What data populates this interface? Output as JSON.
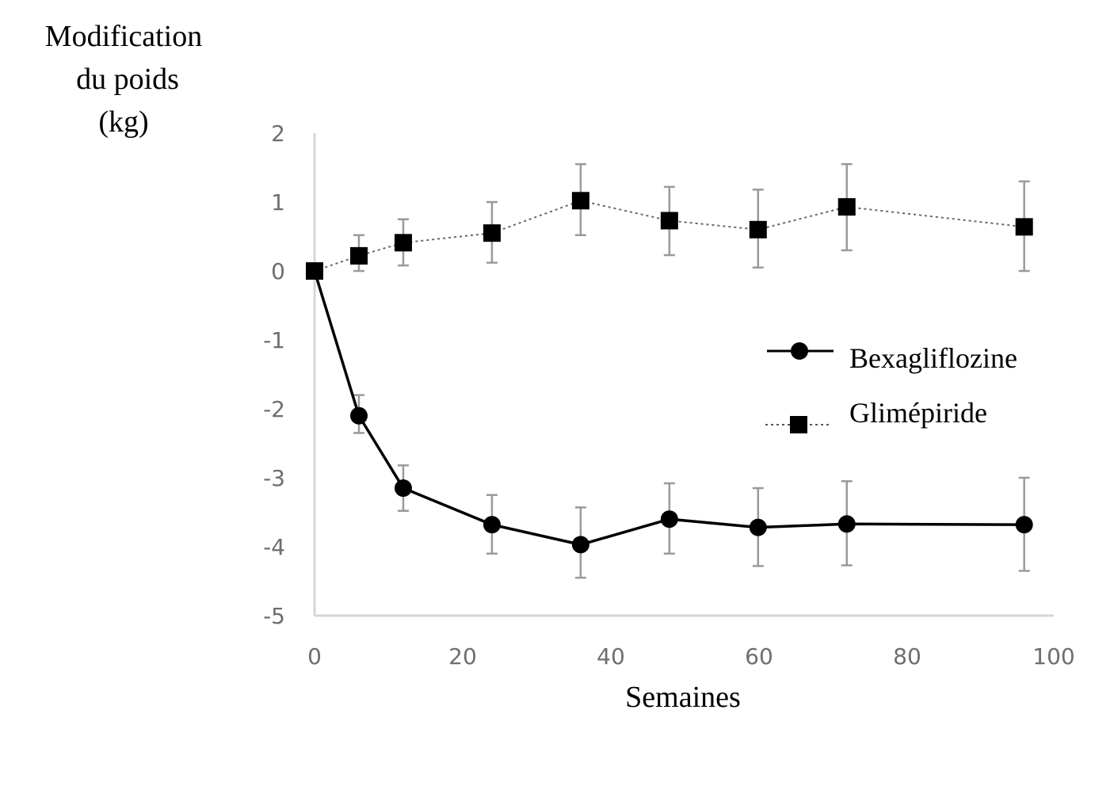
{
  "chart_data": {
    "type": "line",
    "title": "",
    "ylabel_lines": [
      "Modification",
      "du poids",
      "(kg)"
    ],
    "xlabel": "Semaines",
    "xlim": [
      0,
      100
    ],
    "ylim": [
      -5,
      2
    ],
    "xticks": [
      "0",
      "20",
      "40",
      "60",
      "80",
      "100"
    ],
    "yticks": [
      "2",
      "1",
      "0",
      "-1",
      "-2",
      "-3",
      "-4",
      "-5"
    ],
    "grid": false,
    "legend_position": "right-center",
    "series": [
      {
        "name": "Bexagliflozine",
        "marker": "circle",
        "line_style": "solid",
        "color": "#000000",
        "x": [
          0,
          6,
          12,
          24,
          36,
          48,
          60,
          72,
          96
        ],
        "y": [
          0,
          -2.1,
          -3.15,
          -3.68,
          -3.97,
          -3.6,
          -3.72,
          -3.67,
          -3.68
        ],
        "err_low": [
          0,
          -2.35,
          -3.48,
          -4.1,
          -4.45,
          -4.1,
          -4.28,
          -4.27,
          -4.35
        ],
        "err_high": [
          0,
          -1.8,
          -2.82,
          -3.25,
          -3.43,
          -3.08,
          -3.15,
          -3.05,
          -3.0
        ]
      },
      {
        "name": "Glimépiride",
        "marker": "square",
        "line_style": "dotted",
        "color": "#000000",
        "x": [
          0,
          6,
          12,
          24,
          36,
          48,
          60,
          72,
          96
        ],
        "y": [
          0,
          0.22,
          0.41,
          0.55,
          1.02,
          0.73,
          0.6,
          0.93,
          0.64
        ],
        "err_low": [
          0,
          0.0,
          0.08,
          0.12,
          0.52,
          0.23,
          0.05,
          0.3,
          0.0
        ],
        "err_high": [
          0,
          0.52,
          0.75,
          1.0,
          1.55,
          1.22,
          1.18,
          1.55,
          1.3
        ]
      }
    ]
  }
}
